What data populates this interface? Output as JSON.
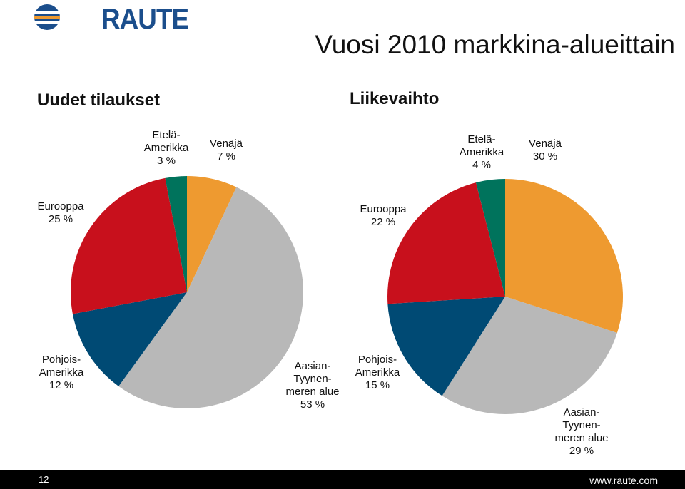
{
  "logo": {
    "text": "RAUTE"
  },
  "page_title": "Vuosi 2010 markkina-alueittain",
  "footer": {
    "page_number": "12",
    "url": "www.raute.com"
  },
  "colors": {
    "venaja": "#ee9a30",
    "aasia": "#b8b8b8",
    "pohjois": "#004a74",
    "eurooppa": "#c8101c",
    "etela": "#00735c"
  },
  "chart_data": [
    {
      "type": "pie",
      "title": "Uudet tilaukset",
      "slices": [
        {
          "label": "Venäjä\n7 %",
          "value": 7,
          "color_key": "venaja"
        },
        {
          "label": "Aasian-\nTyynen-\nmeren alue\n53 %",
          "value": 53,
          "color_key": "aasia"
        },
        {
          "label": "Pohjois-\nAmerikka\n12 %",
          "value": 12,
          "color_key": "pohjois"
        },
        {
          "label": "Eurooppa\n25 %",
          "value": 25,
          "color_key": "eurooppa"
        },
        {
          "label": "Etelä-\nAmerikka\n3 %",
          "value": 3,
          "color_key": "etela"
        }
      ]
    },
    {
      "type": "pie",
      "title": "Liikevaihto",
      "slices": [
        {
          "label": "Venäjä\n30 %",
          "value": 30,
          "color_key": "venaja"
        },
        {
          "label": "Aasian-\nTyynen-\nmeren alue\n29 %",
          "value": 29,
          "color_key": "aasia"
        },
        {
          "label": "Pohjois-\nAmerikka\n15 %",
          "value": 15,
          "color_key": "pohjois"
        },
        {
          "label": "Eurooppa\n22 %",
          "value": 22,
          "color_key": "eurooppa"
        },
        {
          "label": "Etelä-\nAmerikka\n4 %",
          "value": 4,
          "color_key": "etela"
        }
      ]
    }
  ]
}
